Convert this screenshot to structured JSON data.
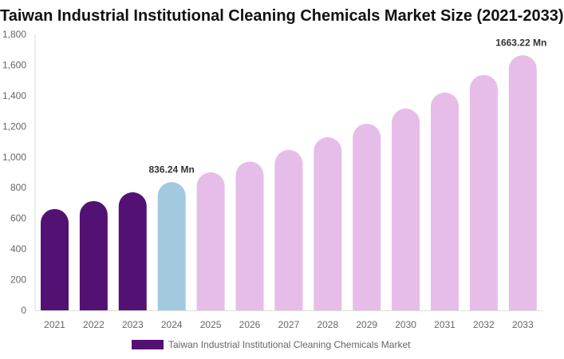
{
  "chart_data": {
    "type": "bar",
    "title": "Taiwan Industrial Institutional Cleaning Chemicals Market Size (2021-2033)",
    "categories": [
      "2021",
      "2022",
      "2023",
      "2024",
      "2025",
      "2026",
      "2027",
      "2028",
      "2029",
      "2030",
      "2031",
      "2032",
      "2033"
    ],
    "series": [
      {
        "name": "Taiwan Industrial Institutional Cleaning Chemicals Market",
        "values": [
          661,
          713,
          770,
          836.24,
          900,
          970,
          1046,
          1129,
          1217,
          1316,
          1420,
          1535,
          1663.22
        ]
      }
    ],
    "data_labels": [
      {
        "category": "2024",
        "text": "836.24 Mn"
      },
      {
        "category": "2033",
        "text": "1663.22 Mn"
      }
    ],
    "ylim": [
      0,
      1800
    ],
    "yticks": [
      "0",
      "200",
      "400",
      "600",
      "800",
      "1,000",
      "1,200",
      "1,400",
      "1,600",
      "1,800"
    ],
    "grid": false,
    "legend": "bottom",
    "colors": {
      "historical": "#531273",
      "current": "#a3c9de",
      "forecast": "#e6bde8"
    }
  }
}
